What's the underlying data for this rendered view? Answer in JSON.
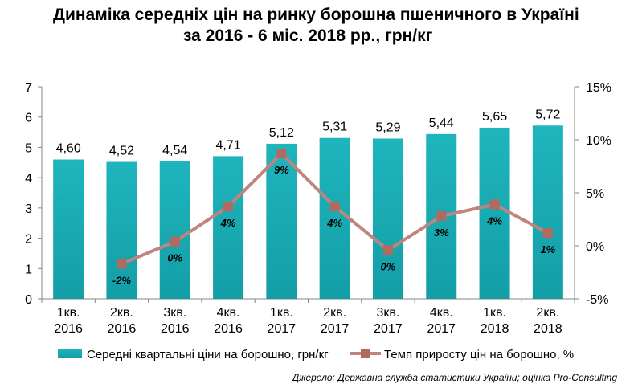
{
  "title_line1": "Динаміка середніх цін на ринку борошна пшеничного в Україні",
  "title_line2": "за 2016 - 6 міс. 2018 рр., грн/кг",
  "source": "Джерело: Державна служба статистики України; оцінка Pro-Consulting",
  "colors": {
    "bar": "#139ea6",
    "line": "#c0847e",
    "marker": "#b06a60"
  },
  "chart_data": {
    "type": "bar",
    "categories": [
      [
        "1кв.",
        "2016"
      ],
      [
        "2кв.",
        "2016"
      ],
      [
        "3кв.",
        "2016"
      ],
      [
        "4кв.",
        "2016"
      ],
      [
        "1кв.",
        "2017"
      ],
      [
        "2кв.",
        "2017"
      ],
      [
        "3кв.",
        "2017"
      ],
      [
        "4кв.",
        "2017"
      ],
      [
        "1кв.",
        "2018"
      ],
      [
        "2кв.",
        "2018"
      ]
    ],
    "series": [
      {
        "name": "Середні квартальні ціни на борошно, грн/кг",
        "type": "bar",
        "axis": "left",
        "values": [
          4.6,
          4.52,
          4.54,
          4.71,
          5.12,
          5.31,
          5.29,
          5.44,
          5.65,
          5.72
        ],
        "labels": [
          "4,60",
          "4,52",
          "4,54",
          "4,71",
          "5,12",
          "5,31",
          "5,29",
          "5,44",
          "5,65",
          "5,72"
        ]
      },
      {
        "name": "Темп приросту цін на борошно, %",
        "type": "line",
        "axis": "right",
        "values": [
          null,
          -1.7,
          0.4,
          3.7,
          8.7,
          3.7,
          -0.4,
          2.8,
          3.9,
          1.2
        ],
        "labels": [
          null,
          "-2%",
          "0%",
          "4%",
          "9%",
          "4%",
          "0%",
          "3%",
          "4%",
          "1%"
        ]
      }
    ],
    "y_left": {
      "min": 0,
      "max": 7,
      "ticks": [
        "0",
        "1",
        "2",
        "3",
        "4",
        "5",
        "6",
        "7"
      ]
    },
    "y_right": {
      "min": -5,
      "max": 15,
      "ticks": [
        "-5%",
        "0%",
        "5%",
        "10%",
        "15%"
      ]
    },
    "legend": "bottom"
  }
}
